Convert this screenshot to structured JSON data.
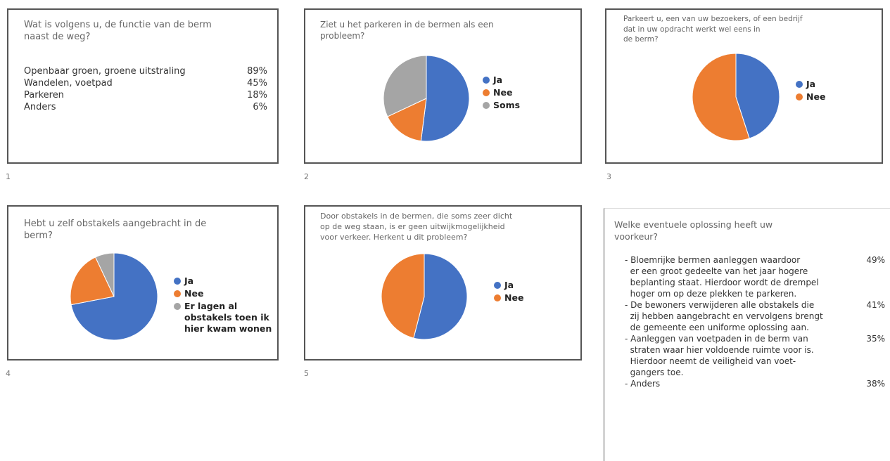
{
  "slides": [
    {
      "number": "1",
      "question": [
        "Wat is volgens u, de functie van de berm",
        "naast de weg?"
      ],
      "items": [
        {
          "label": "Openbaar groen, groene uitstraling",
          "value": "89%"
        },
        {
          "label": "Wandelen, voetpad",
          "value": "45%"
        },
        {
          "label": "Parkeren",
          "value": "18%"
        },
        {
          "label": "Anders",
          "value": "6%"
        }
      ]
    },
    {
      "number": "2",
      "question": [
        "Ziet u het parkeren in de bermen als een",
        "probleem?"
      ],
      "chart": {
        "type": "pie",
        "categories": [
          "Ja",
          "Nee",
          "Soms"
        ],
        "values": [
          52,
          16,
          32
        ],
        "colors": [
          "#4472c4",
          "#ed7d31",
          "#a5a5a5"
        ]
      }
    },
    {
      "number": "3",
      "question": [
        "Parkeert u, een van uw bezoekers, of een bedrijf",
        "dat in uw opdracht werkt wel eens in",
        "de berm?"
      ],
      "chart": {
        "type": "pie",
        "categories": [
          "Ja",
          "Nee"
        ],
        "values": [
          45,
          55
        ],
        "colors": [
          "#4472c4",
          "#ed7d31"
        ]
      }
    },
    {
      "number": "4",
      "question": [
        "Hebt u zelf obstakels aangebracht in de",
        "berm?"
      ],
      "chart": {
        "type": "pie",
        "categories": [
          "Ja",
          "Nee",
          "Er lagen al obstakels toen ik hier kwam wonen"
        ],
        "values": [
          72,
          21,
          7
        ],
        "colors": [
          "#4472c4",
          "#ed7d31",
          "#a5a5a5"
        ]
      }
    },
    {
      "number": "5",
      "question": [
        "Door obstakels in de bermen, die soms zeer dicht",
        "op de weg staan, is er geen uitwijkmogelijkheid",
        "voor verkeer. Herkent u dit probleem?"
      ],
      "chart": {
        "type": "pie",
        "categories": [
          "Ja",
          "Nee"
        ],
        "values": [
          54,
          46
        ],
        "colors": [
          "#4472c4",
          "#ed7d31"
        ]
      }
    },
    {
      "question": [
        "Welke eventuele oplossing heeft uw",
        "voorkeur?"
      ],
      "items": [
        {
          "lines": [
            "- Bloemrijke bermen aanleggen waardoor",
            "  er een groot gedeelte van het jaar hogere",
            "  beplanting staat. Hierdoor wordt de drempel",
            "  hoger om op deze plekken te parkeren."
          ],
          "value": "49%"
        },
        {
          "lines": [
            "- De bewoners verwijderen alle obstakels die",
            "  zij hebben aangebracht en vervolgens brengt",
            "  de gemeente een uniforme oplossing aan."
          ],
          "value": "41%"
        },
        {
          "lines": [
            "- Aanleggen van voetpaden in de berm van",
            "  straten waar hier voldoende ruimte voor is.",
            "  Hierdoor neemt de veiligheid van voet-",
            "  gangers toe."
          ],
          "value": "35%"
        },
        {
          "lines": [
            "- Anders"
          ],
          "value": "38%"
        }
      ]
    }
  ]
}
